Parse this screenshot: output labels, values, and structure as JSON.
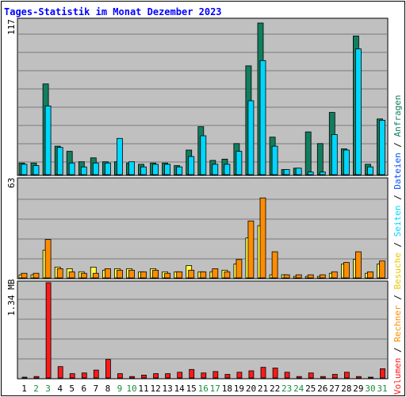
{
  "chart_data": [
    {
      "type": "bar",
      "title": "Tages-Statistik im Monat Dezember 2023",
      "categories": [
        "1",
        "2",
        "3",
        "4",
        "5",
        "6",
        "7",
        "8",
        "9",
        "10",
        "11",
        "12",
        "13",
        "14",
        "15",
        "16",
        "17",
        "18",
        "19",
        "20",
        "21",
        "22",
        "23",
        "24",
        "25",
        "26",
        "27",
        "28",
        "29",
        "30",
        "31"
      ],
      "weekend_days": [
        "2",
        "3",
        "9",
        "10",
        "16",
        "17",
        "23",
        "24",
        "30",
        "31"
      ],
      "ymax_label": "117",
      "ylim": [
        0,
        117
      ],
      "series": [
        {
          "name": "Anfragen",
          "color": "#117e5f",
          "values": [
            9,
            9,
            70,
            22,
            18,
            10,
            13,
            10,
            10,
            9,
            8,
            9,
            9,
            7,
            19,
            37,
            11,
            12,
            24,
            84,
            117,
            29,
            4,
            5,
            33,
            24,
            48,
            20,
            107,
            8,
            43
          ]
        },
        {
          "name": "Dateien",
          "color": "#00d7ff",
          "values": [
            8,
            7,
            53,
            21,
            9,
            6,
            9,
            9,
            28,
            10,
            6,
            8,
            8,
            6,
            14,
            30,
            8,
            8,
            18,
            57,
            88,
            22,
            4,
            5,
            2,
            2,
            31,
            19,
            97,
            6,
            42
          ]
        }
      ]
    },
    {
      "type": "bar",
      "ymax_label": "63",
      "ylim": [
        0,
        63
      ],
      "series": [
        {
          "name": "Seiten",
          "color": "#ffff44",
          "values": [
            2,
            2,
            18,
            7,
            6,
            4,
            7,
            5,
            6,
            6,
            4,
            6,
            4,
            4,
            8,
            4,
            4,
            5,
            9,
            26,
            34,
            2,
            2,
            1,
            1,
            1,
            3,
            9,
            12,
            3,
            9
          ]
        },
        {
          "name": "Besuche",
          "color": "#ff8c00",
          "values": [
            3,
            3,
            25,
            6,
            4,
            3,
            3,
            6,
            5,
            5,
            4,
            5,
            3,
            4,
            5,
            4,
            6,
            4,
            12,
            37,
            52,
            17,
            2,
            2,
            2,
            2,
            4,
            10,
            17,
            4,
            11
          ]
        }
      ]
    },
    {
      "type": "bar",
      "ymax_label": "1.34 MB",
      "ylim": [
        0,
        1.34
      ],
      "series": [
        {
          "name": "Rechner",
          "color": "#ff8c00",
          "values": []
        },
        {
          "name": "Volumen",
          "color": "#ff1a1a",
          "values": [
            0.01,
            0.02,
            1.34,
            0.16,
            0.06,
            0.07,
            0.11,
            0.26,
            0.06,
            0.02,
            0.04,
            0.06,
            0.06,
            0.08,
            0.12,
            0.07,
            0.09,
            0.05,
            0.08,
            0.1,
            0.15,
            0.14,
            0.08,
            0.02,
            0.07,
            0.02,
            0.05,
            0.08,
            0.02,
            0.01,
            0.13
          ]
        }
      ]
    }
  ],
  "legend": [
    {
      "text": "Anfragen",
      "color": "#117e5f"
    },
    {
      "text": "Dateien",
      "color": "#0050ff"
    },
    {
      "text": "Seiten",
      "color": "#00d7ff"
    },
    {
      "text": "Besuche",
      "color": "#e8c800"
    },
    {
      "text": "Rechner",
      "color": "#ff8c00"
    },
    {
      "text": "Volumen",
      "color": "#ff1a1a"
    }
  ],
  "colors": {
    "title": "#0000ff",
    "panel": "#c0c0c0",
    "grid": "#7a7a7a",
    "weekday_label": "#000000",
    "weekend_label": "#1a8c3c",
    "bar_outline": "#000000"
  }
}
